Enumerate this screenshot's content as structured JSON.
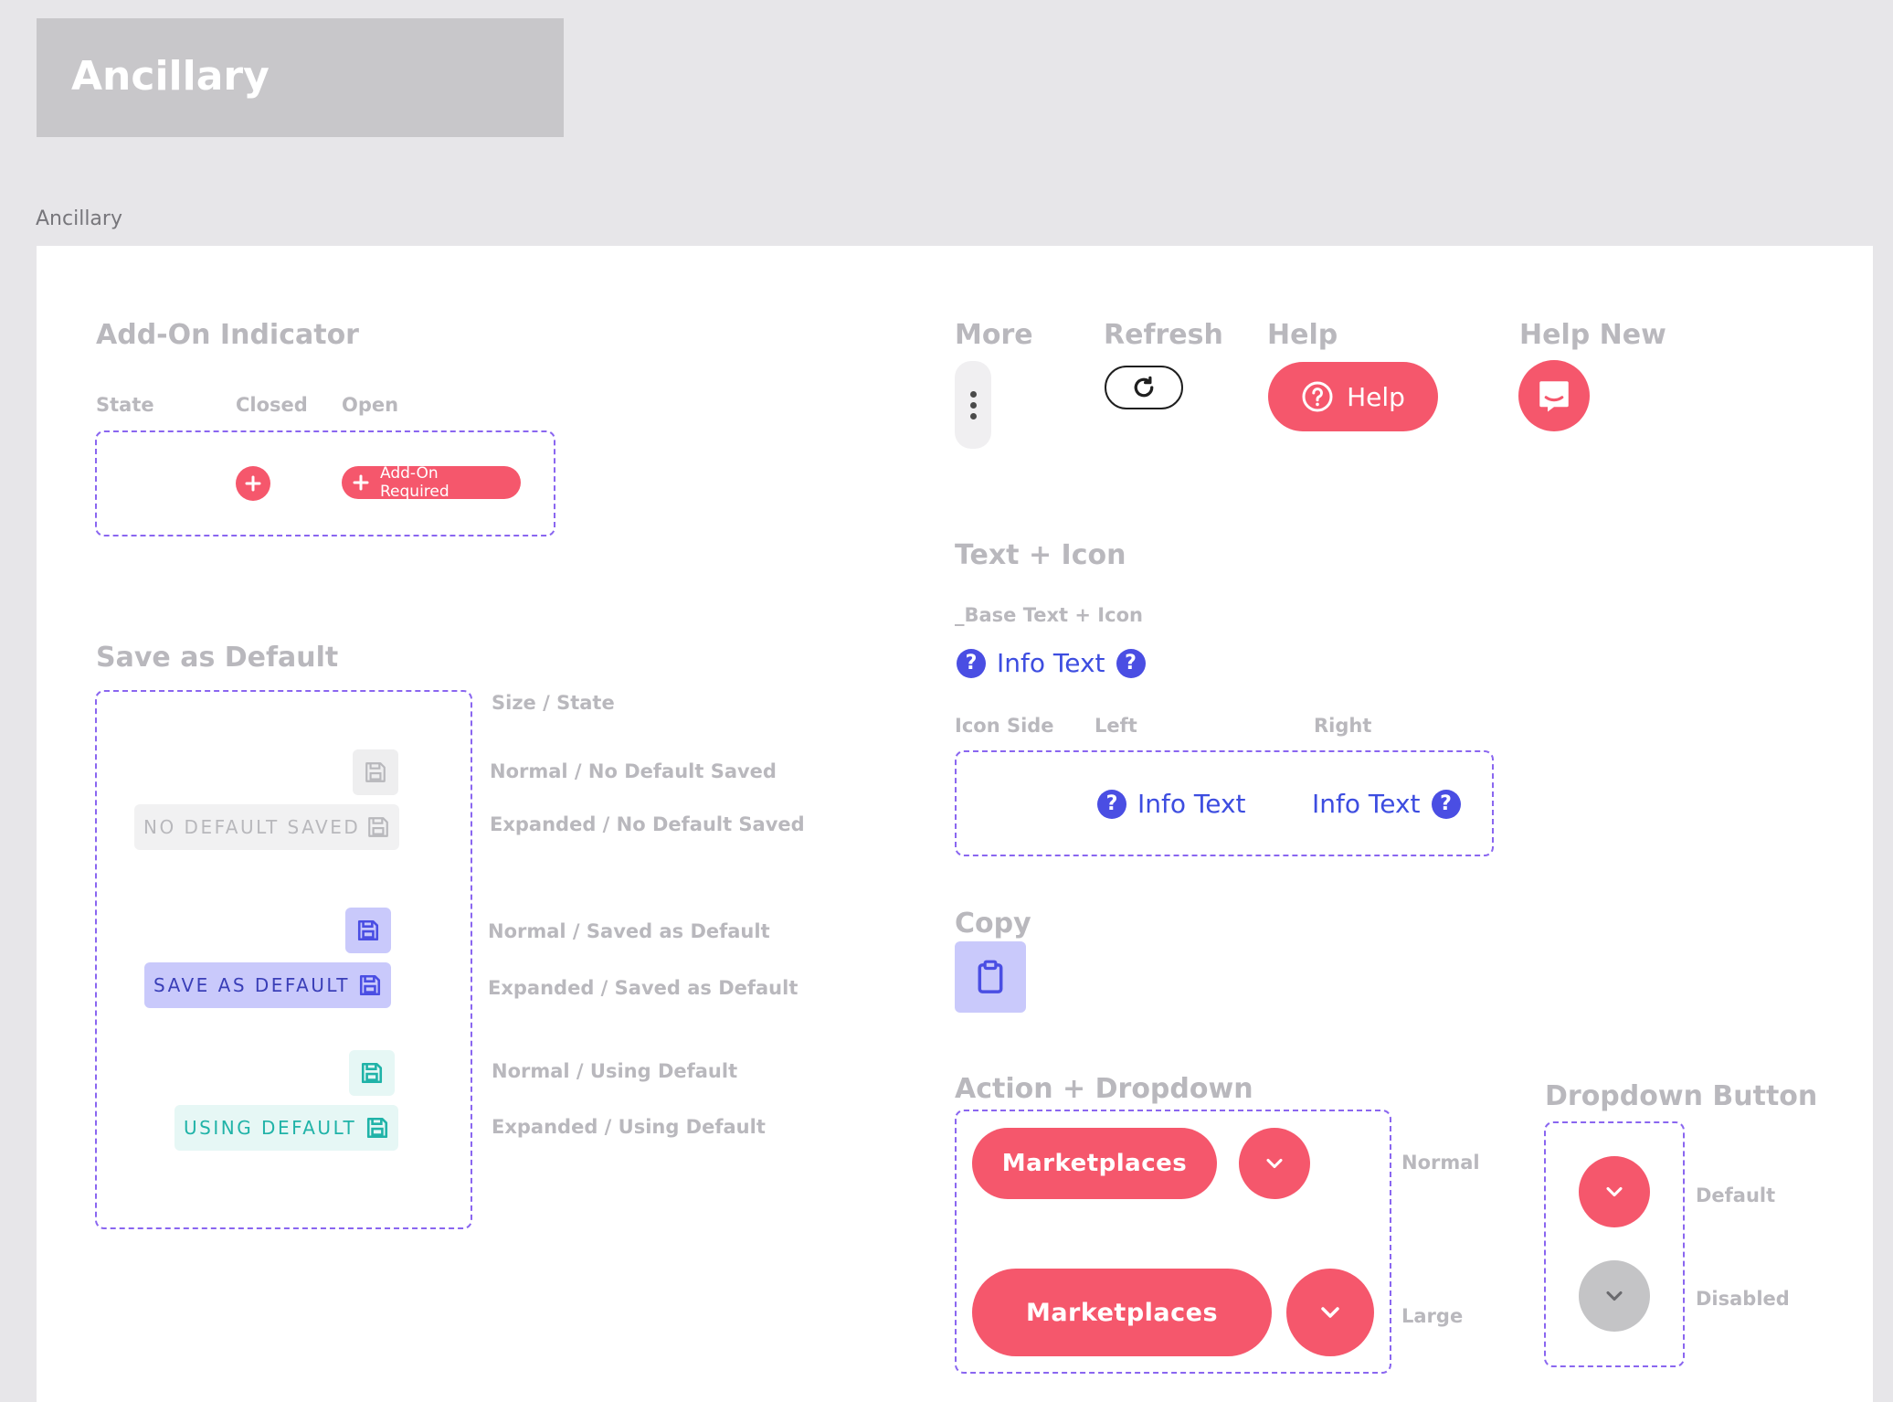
{
  "header": {
    "title": "Ancillary"
  },
  "page_label": "Ancillary",
  "addon": {
    "title": "Add-On Indicator",
    "col_state": "State",
    "col_closed": "Closed",
    "col_open": "Open",
    "open_label": "Add-On Required"
  },
  "save_default": {
    "title": "Save as Default",
    "col_header": "Size / State",
    "rows": [
      {
        "label": "Normal / No Default Saved"
      },
      {
        "label": "Expanded / No Default Saved",
        "button_text": "NO DEFAULT SAVED"
      },
      {
        "label": "Normal / Saved as Default"
      },
      {
        "label": "Expanded / Saved as Default",
        "button_text": "SAVE AS DEFAULT"
      },
      {
        "label": "Normal / Using Default"
      },
      {
        "label": "Expanded / Using Default",
        "button_text": "USING DEFAULT"
      }
    ]
  },
  "more": {
    "title": "More"
  },
  "refresh": {
    "title": "Refresh"
  },
  "help": {
    "title": "Help",
    "button_label": "Help"
  },
  "help_new": {
    "title": "Help New"
  },
  "text_icon": {
    "title": "Text + Icon",
    "base_label": "_Base Text + Icon",
    "base_text": "Info Text",
    "col_icon_side": "Icon Side",
    "col_left": "Left",
    "col_right": "Right",
    "left_text": "Info Text",
    "right_text": "Info Text"
  },
  "copy": {
    "title": "Copy"
  },
  "action_dropdown": {
    "title": "Action + Dropdown",
    "normal_label": "Normal",
    "large_label": "Large",
    "normal_button": "Marketplaces",
    "large_button": "Marketplaces"
  },
  "dropdown_button": {
    "title": "Dropdown Button",
    "default_label": "Default",
    "disabled_label": "Disabled"
  },
  "colors": {
    "accent_pink": "#f5576c",
    "accent_blue": "#4a4ee3",
    "save_purple_bg": "#c9c9fb",
    "using_teal": "#20b3a8",
    "dashed_border": "#8a66f0"
  }
}
